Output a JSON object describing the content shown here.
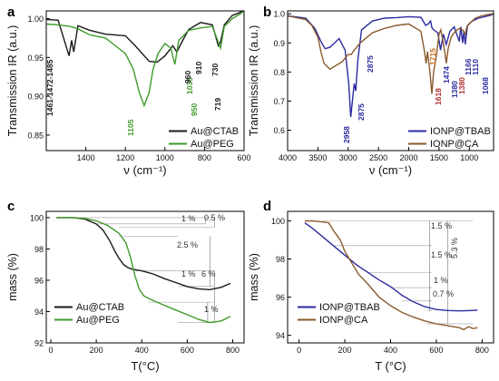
{
  "chart_data": [
    {
      "panel": "a",
      "type": "line",
      "xlabel": "ν (cm⁻¹)",
      "ylabel": "Transmission IR (a.u.)",
      "xlim": [
        1600,
        600
      ],
      "ylim": [
        0.83,
        1.01
      ],
      "xticks": [
        1400,
        1200,
        1000,
        800,
        600
      ],
      "yticks": [
        0.85,
        0.9,
        0.95,
        1.0
      ],
      "legend_position": "bottom-right",
      "series": [
        {
          "name": "Au@CTAB",
          "color": "#1a1a1a",
          "x": [
            1600,
            1540,
            1485,
            1472,
            1461,
            1440,
            1380,
            1300,
            1200,
            1150,
            1080,
            1040,
            1000,
            960,
            940,
            910,
            880,
            820,
            760,
            730,
            719,
            700,
            660,
            620,
            600
          ],
          "y": [
            0.999,
            0.998,
            0.952,
            0.972,
            0.957,
            0.991,
            0.985,
            0.98,
            0.978,
            0.965,
            0.945,
            0.944,
            0.952,
            0.965,
            0.957,
            0.972,
            0.986,
            0.995,
            0.992,
            0.965,
            0.97,
            0.992,
            1.004,
            1.008,
            1.01
          ]
        },
        {
          "name": "Au@PEG",
          "color": "#3f9a2b",
          "x": [
            1600,
            1540,
            1480,
            1440,
            1380,
            1300,
            1250,
            1200,
            1160,
            1130,
            1105,
            1080,
            1060,
            1035,
            1000,
            970,
            950,
            930,
            880,
            820,
            760,
            719,
            700,
            660,
            620,
            600
          ],
          "y": [
            0.993,
            0.992,
            0.99,
            0.987,
            0.979,
            0.975,
            0.965,
            0.955,
            0.935,
            0.905,
            0.888,
            0.905,
            0.935,
            0.955,
            0.968,
            0.962,
            0.941,
            0.972,
            0.985,
            0.988,
            0.99,
            0.962,
            0.99,
            1.0,
            1.006,
            1.01
          ]
        }
      ],
      "annotations": [
        {
          "text": "1461-1472-1485",
          "color": "#1a1a1a"
        },
        {
          "text": "1105",
          "color": "#3f9a2b"
        },
        {
          "text": "1035",
          "color": "#3f9a2b"
        },
        {
          "text": "960",
          "color": "#1a1a1a"
        },
        {
          "text": "950",
          "color": "#3f9a2b"
        },
        {
          "text": "910",
          "color": "#1a1a1a"
        },
        {
          "text": "730",
          "color": "#1a1a1a"
        },
        {
          "text": "719",
          "color": "#1a1a1a"
        }
      ]
    },
    {
      "panel": "b",
      "type": "line",
      "xlabel": "ν (cm⁻¹)",
      "ylabel": "Transmission IR (a.u.)",
      "xlim": [
        4000,
        600
      ],
      "ylim": [
        0.53,
        1.01
      ],
      "xticks": [
        4000,
        3500,
        3000,
        2500,
        2000,
        1500,
        1000
      ],
      "yticks": [
        0.6,
        0.7,
        0.8,
        0.9,
        1.0
      ],
      "legend_position": "bottom-right",
      "series": [
        {
          "name": "IONP@TBAB",
          "color": "#2b2ba0",
          "x": [
            4000,
            3700,
            3550,
            3450,
            3380,
            3300,
            3150,
            3050,
            2990,
            2958,
            2930,
            2900,
            2875,
            2840,
            2780,
            2600,
            2400,
            2200,
            2000,
            1800,
            1720,
            1680,
            1640,
            1618,
            1590,
            1520,
            1474,
            1430,
            1380,
            1320,
            1250,
            1166,
            1140,
            1110,
            1090,
            1068,
            1030,
            950,
            850,
            750,
            650,
            600
          ],
          "y": [
            0.993,
            0.985,
            0.95,
            0.905,
            0.88,
            0.885,
            0.915,
            0.875,
            0.76,
            0.645,
            0.7,
            0.76,
            0.735,
            0.84,
            0.945,
            0.975,
            0.985,
            0.987,
            0.99,
            0.988,
            0.96,
            0.965,
            0.975,
            0.953,
            0.945,
            0.935,
            0.875,
            0.93,
            0.895,
            0.94,
            0.955,
            0.905,
            0.955,
            0.9,
            0.94,
            0.895,
            0.96,
            0.975,
            0.985,
            0.99,
            0.995,
            1.0
          ]
        },
        {
          "name": "IONP@CA",
          "color": "#8a5a2b",
          "x": [
            4000,
            3700,
            3600,
            3500,
            3450,
            3400,
            3300,
            3100,
            3000,
            2950,
            2900,
            2800,
            2600,
            2400,
            2200,
            2000,
            1800,
            1740,
            1715,
            1690,
            1650,
            1618,
            1590,
            1540,
            1500,
            1470,
            1430,
            1400,
            1380,
            1350,
            1300,
            1250,
            1200,
            1160,
            1110,
            1068,
            1040,
            980,
            900,
            800,
            700,
            650,
            600
          ],
          "y": [
            0.993,
            0.98,
            0.96,
            0.92,
            0.87,
            0.83,
            0.81,
            0.835,
            0.86,
            0.86,
            0.875,
            0.9,
            0.935,
            0.95,
            0.96,
            0.965,
            0.94,
            0.87,
            0.83,
            0.87,
            0.8,
            0.725,
            0.8,
            0.86,
            0.93,
            0.945,
            0.9,
            0.86,
            0.83,
            0.88,
            0.92,
            0.935,
            0.945,
            0.95,
            0.945,
            0.93,
            0.955,
            0.97,
            0.985,
            0.993,
            0.997,
            0.999,
            1.0
          ]
        }
      ],
      "annotations": [
        {
          "text": "2958",
          "color": "#2b2ba0"
        },
        {
          "text": "2875",
          "color": "#2b2ba0"
        },
        {
          "text": "2875",
          "color": "#2b2ba0"
        },
        {
          "text": "1715",
          "color": "#c86a1e"
        },
        {
          "text": "1618",
          "color": "#b03030"
        },
        {
          "text": "1474",
          "color": "#2b2ba0"
        },
        {
          "text": "1380",
          "color": "#2b2ba0"
        },
        {
          "text": "1380",
          "color": "#b03030"
        },
        {
          "text": "1166",
          "color": "#2b2ba0"
        },
        {
          "text": "1110",
          "color": "#2b2ba0"
        },
        {
          "text": "1068",
          "color": "#2b2ba0"
        }
      ]
    },
    {
      "panel": "c",
      "type": "line",
      "xlabel": "T(°C)",
      "ylabel": "mass (%)",
      "xlim": [
        -20,
        850
      ],
      "ylim": [
        92.0,
        100.4
      ],
      "xticks": [
        0,
        200,
        400,
        600,
        800
      ],
      "yticks": [
        92,
        94,
        96,
        98,
        100
      ],
      "legend_position": "bottom-left",
      "series": [
        {
          "name": "Au@CTAB",
          "color": "#1a1a1a",
          "x": [
            25,
            100,
            150,
            200,
            230,
            260,
            280,
            300,
            320,
            340,
            360,
            380,
            400,
            450,
            500,
            550,
            600,
            650,
            700,
            750,
            790
          ],
          "y": [
            100.0,
            100.0,
            99.9,
            99.6,
            99.2,
            98.5,
            97.9,
            97.4,
            97.0,
            96.8,
            96.7,
            96.65,
            96.6,
            96.4,
            96.1,
            95.85,
            95.6,
            95.45,
            95.4,
            95.55,
            95.8
          ]
        },
        {
          "name": "Au@PEG",
          "color": "#3f9a2b",
          "x": [
            25,
            100,
            150,
            200,
            250,
            300,
            330,
            350,
            370,
            390,
            410,
            450,
            500,
            550,
            600,
            650,
            700,
            750,
            790
          ],
          "y": [
            100.0,
            100.0,
            99.95,
            99.8,
            99.5,
            99.0,
            98.4,
            97.5,
            96.3,
            95.4,
            95.0,
            94.7,
            94.4,
            94.1,
            93.8,
            93.5,
            93.3,
            93.4,
            93.7
          ]
        }
      ],
      "annotations": [
        {
          "text": "1 %"
        },
        {
          "text": "0.5 %"
        },
        {
          "text": "2.5 %"
        },
        {
          "text": "1 %"
        },
        {
          "text": "6 %"
        },
        {
          "text": "1 %"
        }
      ]
    },
    {
      "panel": "d",
      "type": "line",
      "xlabel": "T (°C)",
      "ylabel": "mass (%)",
      "xlim": [
        -50,
        850
      ],
      "ylim": [
        93.6,
        100.5
      ],
      "xticks": [
        0,
        200,
        400,
        600,
        800
      ],
      "yticks": [
        94,
        96,
        98,
        100
      ],
      "legend_position": "bottom-left",
      "series": [
        {
          "name": "IONP@TBAB",
          "color": "#2b2ba0",
          "x": [
            25,
            60,
            100,
            150,
            200,
            250,
            300,
            350,
            400,
            450,
            500,
            550,
            600,
            650,
            700,
            750,
            780
          ],
          "y": [
            99.9,
            99.6,
            99.2,
            98.7,
            98.2,
            97.7,
            97.3,
            96.9,
            96.55,
            96.1,
            95.75,
            95.5,
            95.35,
            95.3,
            95.28,
            95.3,
            95.32
          ]
        },
        {
          "name": "IONP@CA",
          "color": "#8a5a2b",
          "x": [
            25,
            60,
            100,
            130,
            150,
            180,
            200,
            230,
            260,
            300,
            350,
            400,
            450,
            500,
            550,
            600,
            650,
            700,
            720,
            740,
            760,
            780
          ],
          "y": [
            100.0,
            100.0,
            99.95,
            99.9,
            99.5,
            99.0,
            98.4,
            97.8,
            97.2,
            96.7,
            96.0,
            95.55,
            95.2,
            94.95,
            94.75,
            94.6,
            94.5,
            94.4,
            94.3,
            94.45,
            94.35,
            94.4
          ]
        }
      ],
      "annotations": [
        {
          "text": "1.5 %"
        },
        {
          "text": "1.5 %"
        },
        {
          "text": "1 %"
        },
        {
          "text": "0.7 %"
        },
        {
          "text": "5.3 %"
        }
      ]
    }
  ]
}
